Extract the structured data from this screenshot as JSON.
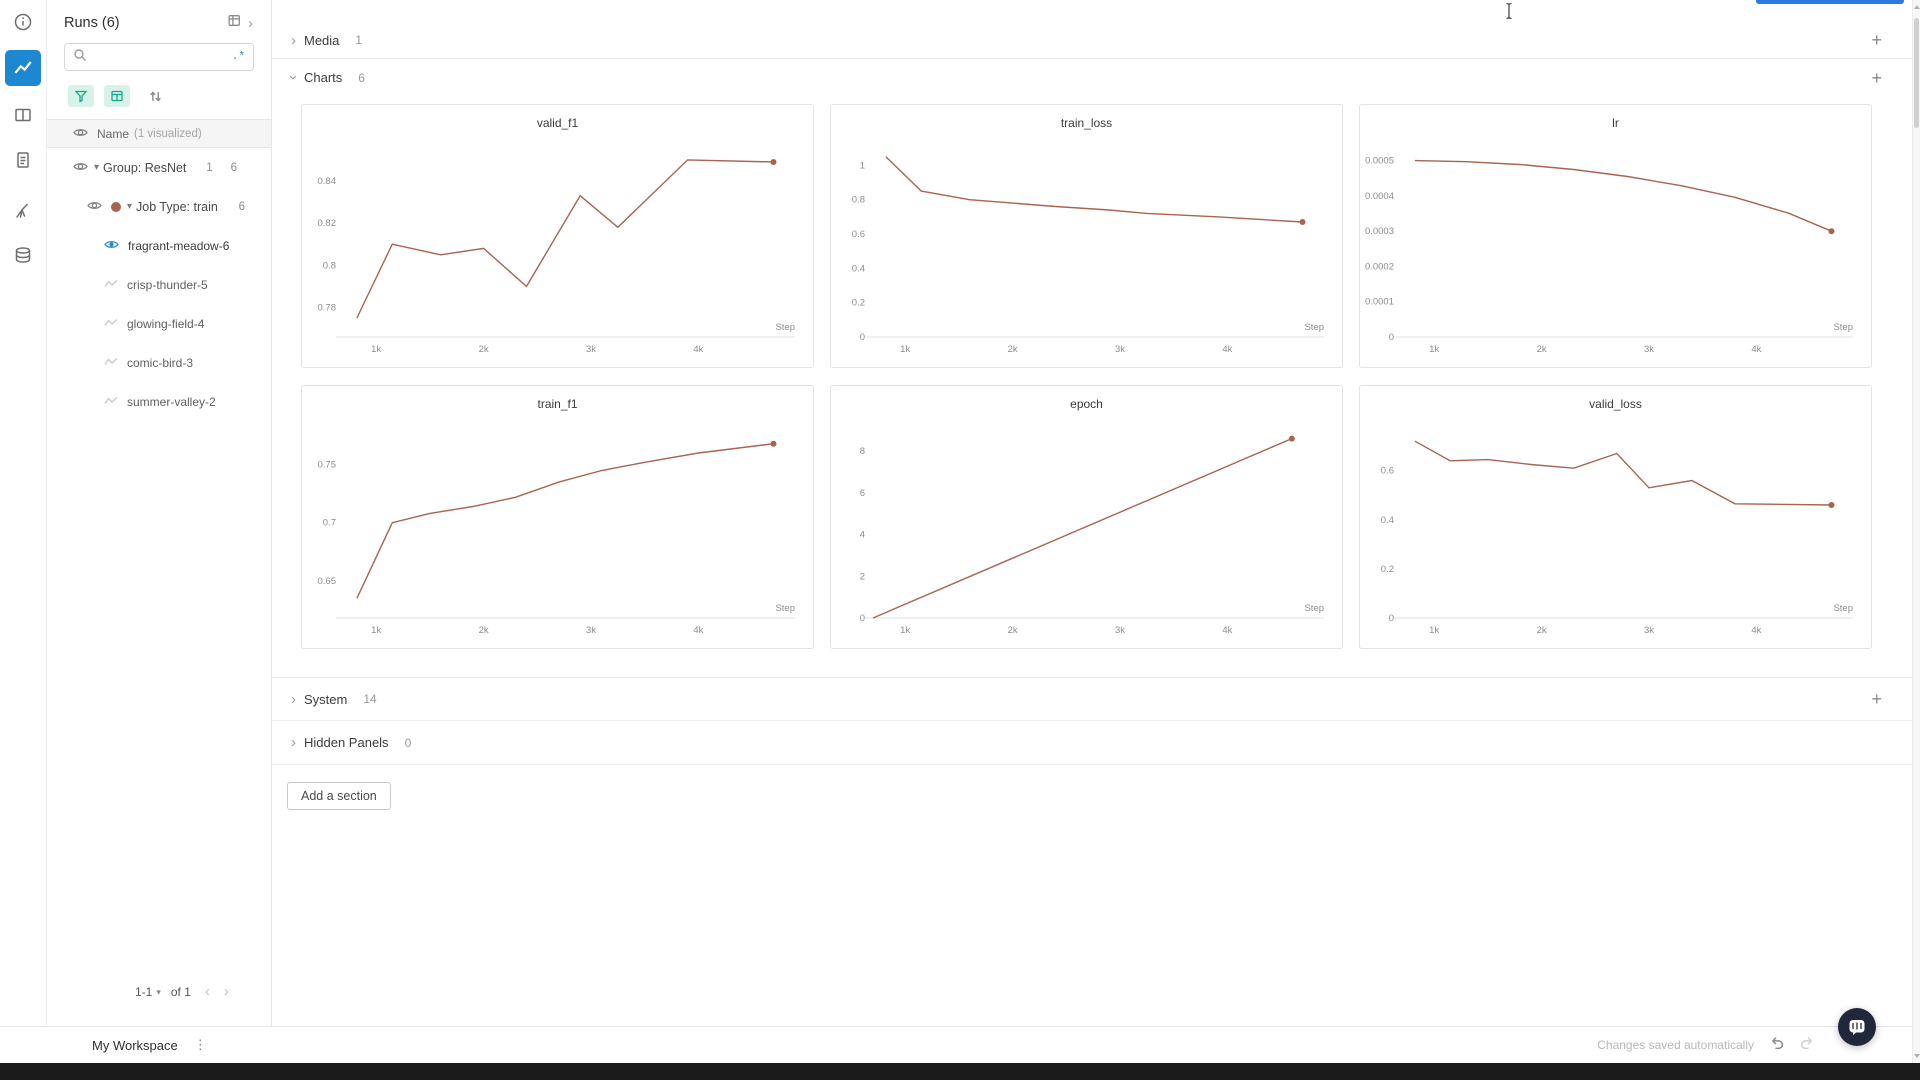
{
  "colors": {
    "line": "#a8644e",
    "blue": "#1e87d1",
    "teal": "#0fa98c",
    "teal_bg": "#d9f2e9"
  },
  "rail": {
    "icons": [
      "info",
      "line-chart",
      "panels",
      "reports",
      "sweeps",
      "artifacts"
    ],
    "active": "line-chart"
  },
  "sidebar": {
    "title": "Runs (6)",
    "search": {
      "value": "",
      "placeholder": "",
      "regex_toggle": ".*"
    },
    "visualized_row": {
      "label": "Name",
      "note": "(1 visualized)"
    },
    "group_row": {
      "label": "Group: ResNet",
      "groups_count": "1",
      "runs_count": "6"
    },
    "jobtype_row": {
      "label": "Job Type: train",
      "runs_count": "6"
    },
    "runs": [
      {
        "label": "fragrant-meadow-6",
        "visualized": true
      },
      {
        "label": "crisp-thunder-5",
        "visualized": false
      },
      {
        "label": "glowing-field-4",
        "visualized": false
      },
      {
        "label": "comic-bird-3",
        "visualized": false
      },
      {
        "label": "summer-valley-2",
        "visualized": false
      }
    ],
    "pagination": {
      "range": "1-1",
      "of_label": "of 1"
    }
  },
  "sections": {
    "media": {
      "label": "Media",
      "count": "1"
    },
    "charts": {
      "label": "Charts",
      "count": "6"
    },
    "system": {
      "label": "System",
      "count": "14"
    },
    "hidden": {
      "label": "Hidden Panels",
      "count": "0"
    }
  },
  "add_section_label": "Add a section",
  "footer": {
    "workspace_label": "My Workspace",
    "status": "Changes saved automatically"
  },
  "chart_data": [
    {
      "type": "line",
      "title": "valid_f1",
      "xlabel": "Step",
      "x": [
        820,
        1150,
        1600,
        2000,
        2400,
        2900,
        3250,
        3900,
        4700
      ],
      "y": [
        0.775,
        0.81,
        0.805,
        0.808,
        0.79,
        0.833,
        0.818,
        0.85,
        0.849
      ],
      "xlim": [
        700,
        4900
      ],
      "xticks": [
        1000,
        2000,
        3000,
        4000
      ],
      "ylim": [
        0.766,
        0.858
      ],
      "yticks": [
        0.78,
        0.8,
        0.82,
        0.84
      ]
    },
    {
      "type": "line",
      "title": "train_loss",
      "xlabel": "Step",
      "x": [
        820,
        1150,
        1600,
        2000,
        2400,
        2900,
        3250,
        3900,
        4700
      ],
      "y": [
        1.05,
        0.85,
        0.8,
        0.78,
        0.76,
        0.74,
        0.72,
        0.7,
        0.67
      ],
      "xlim": [
        700,
        4900
      ],
      "xticks": [
        1000,
        2000,
        3000,
        4000
      ],
      "ylim": [
        0,
        1.13
      ],
      "yticks": [
        0,
        0.2,
        0.4,
        0.6,
        0.8,
        1
      ]
    },
    {
      "type": "line",
      "title": "lr",
      "xlabel": "Step",
      "x": [
        820,
        1300,
        1800,
        2300,
        2800,
        3300,
        3800,
        4300,
        4700
      ],
      "y": [
        0.0005,
        0.000497,
        0.000489,
        0.000475,
        0.000455,
        0.000429,
        0.000396,
        0.000351,
        0.0003
      ],
      "xlim": [
        700,
        4900
      ],
      "xticks": [
        1000,
        2000,
        3000,
        4000
      ],
      "ylim": [
        0,
        0.00055
      ],
      "yticks": [
        0,
        0.0001,
        0.0002,
        0.0003,
        0.0004,
        0.0005
      ]
    },
    {
      "type": "line",
      "title": "train_f1",
      "xlabel": "Step",
      "x": [
        820,
        1150,
        1500,
        1900,
        2300,
        2700,
        3100,
        3500,
        4000,
        4700
      ],
      "y": [
        0.635,
        0.7,
        0.708,
        0.714,
        0.722,
        0.735,
        0.745,
        0.752,
        0.76,
        0.768
      ],
      "xlim": [
        700,
        4900
      ],
      "xticks": [
        1000,
        2000,
        3000,
        4000
      ],
      "ylim": [
        0.618,
        0.785
      ],
      "yticks": [
        0.65,
        0.7,
        0.75
      ]
    },
    {
      "type": "line",
      "title": "epoch",
      "xlabel": "Step",
      "x": [
        700,
        4600
      ],
      "y": [
        0,
        8.6
      ],
      "xlim": [
        700,
        4900
      ],
      "xticks": [
        1000,
        2000,
        3000,
        4000
      ],
      "ylim": [
        0,
        9.3
      ],
      "yticks": [
        0,
        2,
        4,
        6,
        8
      ]
    },
    {
      "type": "line",
      "title": "valid_loss",
      "xlabel": "Step",
      "x": [
        820,
        1150,
        1500,
        1900,
        2300,
        2700,
        3000,
        3400,
        3800,
        4700
      ],
      "y": [
        0.72,
        0.64,
        0.645,
        0.625,
        0.61,
        0.67,
        0.53,
        0.56,
        0.465,
        0.46
      ],
      "xlim": [
        700,
        4900
      ],
      "xticks": [
        1000,
        2000,
        3000,
        4000
      ],
      "ylim": [
        0,
        0.79
      ],
      "yticks": [
        0,
        0.2,
        0.4,
        0.6
      ]
    }
  ]
}
